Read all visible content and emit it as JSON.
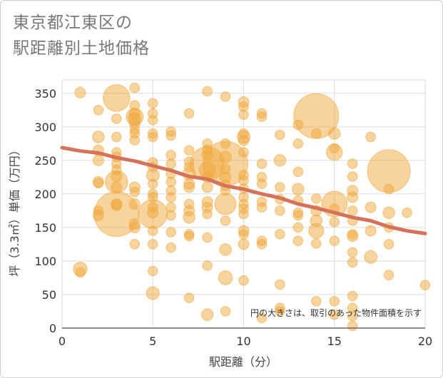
{
  "title_line1": "東京都江東区の",
  "title_line2": "駅距離別土地価格",
  "note": "円の大きさは、取引のあった物件面積を示す",
  "colors": {
    "bubble": "#f0a83c",
    "line": "#d4725a",
    "grid": "#d5dde6",
    "axis": "#666666"
  },
  "chart_data": {
    "type": "scatter",
    "xlabel": "駅距離（分）",
    "ylabel": "坪（3.3㎡）単価（万円）",
    "xlim": [
      0,
      20
    ],
    "ylim": [
      0,
      370
    ],
    "xticks": [
      0,
      5,
      10,
      15,
      20
    ],
    "yticks": [
      0,
      50,
      100,
      150,
      200,
      250,
      300,
      350
    ],
    "grid": true,
    "points": [
      {
        "x": 1,
        "y": 351,
        "s": 1
      },
      {
        "x": 1,
        "y": 88,
        "s": 1.3
      },
      {
        "x": 1,
        "y": 83,
        "s": 0.9
      },
      {
        "x": 2,
        "y": 325,
        "s": 0.9
      },
      {
        "x": 2,
        "y": 285,
        "s": 1.1
      },
      {
        "x": 2,
        "y": 265,
        "s": 1
      },
      {
        "x": 2,
        "y": 250,
        "s": 1
      },
      {
        "x": 2,
        "y": 218,
        "s": 1
      },
      {
        "x": 2,
        "y": 216,
        "s": 0.9
      },
      {
        "x": 2,
        "y": 175,
        "s": 0.9
      },
      {
        "x": 2,
        "y": 168,
        "s": 1
      },
      {
        "x": 3,
        "y": 343,
        "s": 2.5
      },
      {
        "x": 3,
        "y": 312,
        "s": 0.9
      },
      {
        "x": 3,
        "y": 285,
        "s": 0.9
      },
      {
        "x": 3,
        "y": 262,
        "s": 0.9
      },
      {
        "x": 3,
        "y": 255,
        "s": 0.9
      },
      {
        "x": 3,
        "y": 245,
        "s": 0.9
      },
      {
        "x": 3,
        "y": 236,
        "s": 0.9
      },
      {
        "x": 3,
        "y": 226,
        "s": 1
      },
      {
        "x": 3,
        "y": 218,
        "s": 2.1
      },
      {
        "x": 3,
        "y": 210,
        "s": 1
      },
      {
        "x": 3,
        "y": 185,
        "s": 1
      },
      {
        "x": 3,
        "y": 183,
        "s": 1
      },
      {
        "x": 3,
        "y": 170,
        "s": 4.2
      },
      {
        "x": 4,
        "y": 358,
        "s": 0.9
      },
      {
        "x": 4,
        "y": 332,
        "s": 0.9
      },
      {
        "x": 4,
        "y": 320,
        "s": 1
      },
      {
        "x": 4,
        "y": 315,
        "s": 1.6
      },
      {
        "x": 4,
        "y": 312,
        "s": 1.2
      },
      {
        "x": 4,
        "y": 305,
        "s": 1
      },
      {
        "x": 4,
        "y": 296,
        "s": 0.9
      },
      {
        "x": 4,
        "y": 290,
        "s": 0.9
      },
      {
        "x": 4,
        "y": 280,
        "s": 0.9
      },
      {
        "x": 4,
        "y": 210,
        "s": 1
      },
      {
        "x": 4,
        "y": 203,
        "s": 0.9
      },
      {
        "x": 4,
        "y": 185,
        "s": 1
      },
      {
        "x": 4,
        "y": 155,
        "s": 1
      },
      {
        "x": 4,
        "y": 150,
        "s": 1
      },
      {
        "x": 4,
        "y": 125,
        "s": 0.9
      },
      {
        "x": 5,
        "y": 335,
        "s": 0.9
      },
      {
        "x": 5,
        "y": 320,
        "s": 0.9
      },
      {
        "x": 5,
        "y": 310,
        "s": 0.9
      },
      {
        "x": 5,
        "y": 290,
        "s": 0.9
      },
      {
        "x": 5,
        "y": 285,
        "s": 0.9
      },
      {
        "x": 5,
        "y": 247,
        "s": 0.9
      },
      {
        "x": 5,
        "y": 240,
        "s": 0.9
      },
      {
        "x": 5,
        "y": 228,
        "s": 1.2
      },
      {
        "x": 5,
        "y": 215,
        "s": 0.9
      },
      {
        "x": 5,
        "y": 200,
        "s": 0.9
      },
      {
        "x": 5,
        "y": 195,
        "s": 0.9
      },
      {
        "x": 5,
        "y": 180,
        "s": 0.9
      },
      {
        "x": 5,
        "y": 172,
        "s": 1
      },
      {
        "x": 5,
        "y": 170,
        "s": 2.7
      },
      {
        "x": 5,
        "y": 145,
        "s": 0.9
      },
      {
        "x": 5,
        "y": 125,
        "s": 0.9
      },
      {
        "x": 5,
        "y": 85,
        "s": 0.9
      },
      {
        "x": 5,
        "y": 52,
        "s": 1.2
      },
      {
        "x": 6,
        "y": 293,
        "s": 0.9
      },
      {
        "x": 6,
        "y": 287,
        "s": 0.9
      },
      {
        "x": 6,
        "y": 258,
        "s": 0.9
      },
      {
        "x": 6,
        "y": 245,
        "s": 0.9
      },
      {
        "x": 6,
        "y": 230,
        "s": 0.9
      },
      {
        "x": 6,
        "y": 218,
        "s": 0.9
      },
      {
        "x": 6,
        "y": 205,
        "s": 0.9
      },
      {
        "x": 6,
        "y": 195,
        "s": 0.9
      },
      {
        "x": 6,
        "y": 180,
        "s": 0.9
      },
      {
        "x": 6,
        "y": 168,
        "s": 0.9
      },
      {
        "x": 6,
        "y": 143,
        "s": 0.9
      },
      {
        "x": 6,
        "y": 120,
        "s": 0.9
      },
      {
        "x": 7,
        "y": 320,
        "s": 0.9
      },
      {
        "x": 7,
        "y": 265,
        "s": 0.9
      },
      {
        "x": 7,
        "y": 248,
        "s": 0.9
      },
      {
        "x": 7,
        "y": 240,
        "s": 0.9
      },
      {
        "x": 7,
        "y": 230,
        "s": 1.2
      },
      {
        "x": 7,
        "y": 215,
        "s": 1
      },
      {
        "x": 7,
        "y": 210,
        "s": 1
      },
      {
        "x": 7,
        "y": 185,
        "s": 0.9
      },
      {
        "x": 7,
        "y": 175,
        "s": 1
      },
      {
        "x": 7,
        "y": 165,
        "s": 1.1
      },
      {
        "x": 7,
        "y": 140,
        "s": 0.9
      },
      {
        "x": 7,
        "y": 137,
        "s": 0.9
      },
      {
        "x": 7,
        "y": 45,
        "s": 0.9
      },
      {
        "x": 8,
        "y": 353,
        "s": 0.9
      },
      {
        "x": 8,
        "y": 275,
        "s": 0.9
      },
      {
        "x": 8,
        "y": 266,
        "s": 0.9
      },
      {
        "x": 8,
        "y": 258,
        "s": 1
      },
      {
        "x": 8,
        "y": 245,
        "s": 3.2
      },
      {
        "x": 8,
        "y": 236,
        "s": 1.5
      },
      {
        "x": 8,
        "y": 225,
        "s": 1
      },
      {
        "x": 8,
        "y": 210,
        "s": 1
      },
      {
        "x": 8,
        "y": 188,
        "s": 1
      },
      {
        "x": 8,
        "y": 180,
        "s": 1
      },
      {
        "x": 8,
        "y": 170,
        "s": 0.9
      },
      {
        "x": 8,
        "y": 135,
        "s": 0.9
      },
      {
        "x": 8,
        "y": 93,
        "s": 0.9
      },
      {
        "x": 8,
        "y": 20,
        "s": 1.1
      },
      {
        "x": 9,
        "y": 345,
        "s": 0.9
      },
      {
        "x": 9,
        "y": 275,
        "s": 0.9
      },
      {
        "x": 9,
        "y": 255,
        "s": 1.1
      },
      {
        "x": 9,
        "y": 245,
        "s": 4.2
      },
      {
        "x": 9,
        "y": 237,
        "s": 0.9
      },
      {
        "x": 9,
        "y": 225,
        "s": 1
      },
      {
        "x": 9,
        "y": 213,
        "s": 1
      },
      {
        "x": 9,
        "y": 205,
        "s": 0.9
      },
      {
        "x": 9,
        "y": 185,
        "s": 2
      },
      {
        "x": 9,
        "y": 160,
        "s": 0.9
      },
      {
        "x": 9,
        "y": 117,
        "s": 1.1
      },
      {
        "x": 9,
        "y": 75,
        "s": 1.3
      },
      {
        "x": 9,
        "y": 25,
        "s": 0.9
      },
      {
        "x": 10,
        "y": 337,
        "s": 1
      },
      {
        "x": 10,
        "y": 330,
        "s": 0.9
      },
      {
        "x": 10,
        "y": 318,
        "s": 0.9
      },
      {
        "x": 10,
        "y": 290,
        "s": 0.9
      },
      {
        "x": 10,
        "y": 285,
        "s": 1.2
      },
      {
        "x": 10,
        "y": 280,
        "s": 1
      },
      {
        "x": 10,
        "y": 262,
        "s": 0.9
      },
      {
        "x": 10,
        "y": 228,
        "s": 0.9
      },
      {
        "x": 10,
        "y": 220,
        "s": 0.9
      },
      {
        "x": 10,
        "y": 208,
        "s": 0.9
      },
      {
        "x": 10,
        "y": 195,
        "s": 0.9
      },
      {
        "x": 10,
        "y": 185,
        "s": 0.9
      },
      {
        "x": 10,
        "y": 178,
        "s": 0.9
      },
      {
        "x": 10,
        "y": 170,
        "s": 0.9
      },
      {
        "x": 10,
        "y": 145,
        "s": 1
      },
      {
        "x": 10,
        "y": 140,
        "s": 0.9
      },
      {
        "x": 10,
        "y": 125,
        "s": 1
      },
      {
        "x": 10,
        "y": 71,
        "s": 0.9
      },
      {
        "x": 11,
        "y": 320,
        "s": 0.9
      },
      {
        "x": 11,
        "y": 315,
        "s": 0.9
      },
      {
        "x": 11,
        "y": 245,
        "s": 0.9
      },
      {
        "x": 11,
        "y": 225,
        "s": 0.9
      },
      {
        "x": 11,
        "y": 215,
        "s": 0.9
      },
      {
        "x": 11,
        "y": 188,
        "s": 0.9
      },
      {
        "x": 11,
        "y": 180,
        "s": 0.9
      },
      {
        "x": 11,
        "y": 130,
        "s": 0.9
      },
      {
        "x": 11,
        "y": 125,
        "s": 0.9
      },
      {
        "x": 11,
        "y": 15,
        "s": 0.9
      },
      {
        "x": 12,
        "y": 288,
        "s": 0.9
      },
      {
        "x": 12,
        "y": 250,
        "s": 1.1
      },
      {
        "x": 12,
        "y": 210,
        "s": 0.9
      },
      {
        "x": 12,
        "y": 192,
        "s": 0.9
      },
      {
        "x": 12,
        "y": 175,
        "s": 0.9
      },
      {
        "x": 12,
        "y": 140,
        "s": 0.9
      },
      {
        "x": 12,
        "y": 65,
        "s": 0.9
      },
      {
        "x": 12,
        "y": 30,
        "s": 0.9
      },
      {
        "x": 12,
        "y": 25,
        "s": 0.9
      },
      {
        "x": 13,
        "y": 303,
        "s": 0.9
      },
      {
        "x": 13,
        "y": 275,
        "s": 0.9
      },
      {
        "x": 13,
        "y": 233,
        "s": 0.9
      },
      {
        "x": 13,
        "y": 207,
        "s": 1.1
      },
      {
        "x": 13,
        "y": 190,
        "s": 0.9
      },
      {
        "x": 13,
        "y": 172,
        "s": 0.9
      },
      {
        "x": 13,
        "y": 168,
        "s": 0.9
      },
      {
        "x": 13,
        "y": 150,
        "s": 0.9
      },
      {
        "x": 13,
        "y": 130,
        "s": 0.9
      },
      {
        "x": 14,
        "y": 316,
        "s": 4.2
      },
      {
        "x": 14,
        "y": 290,
        "s": 0.9
      },
      {
        "x": 14,
        "y": 193,
        "s": 0.9
      },
      {
        "x": 14,
        "y": 175,
        "s": 1
      },
      {
        "x": 14,
        "y": 160,
        "s": 1.1
      },
      {
        "x": 14,
        "y": 145,
        "s": 1.4
      },
      {
        "x": 14,
        "y": 126,
        "s": 0.9
      },
      {
        "x": 14,
        "y": 40,
        "s": 0.9
      },
      {
        "x": 15,
        "y": 290,
        "s": 1.1
      },
      {
        "x": 15,
        "y": 268,
        "s": 0.9
      },
      {
        "x": 15,
        "y": 262,
        "s": 1.5
      },
      {
        "x": 15,
        "y": 185,
        "s": 2.4
      },
      {
        "x": 15,
        "y": 178,
        "s": 0.9
      },
      {
        "x": 15,
        "y": 158,
        "s": 0.9
      },
      {
        "x": 15,
        "y": 130,
        "s": 0.9
      },
      {
        "x": 15,
        "y": 40,
        "s": 0.9
      },
      {
        "x": 15,
        "y": 20,
        "s": 0.9
      },
      {
        "x": 16,
        "y": 245,
        "s": 0.9
      },
      {
        "x": 16,
        "y": 226,
        "s": 0.9
      },
      {
        "x": 16,
        "y": 205,
        "s": 1
      },
      {
        "x": 16,
        "y": 195,
        "s": 1
      },
      {
        "x": 16,
        "y": 175,
        "s": 0.9
      },
      {
        "x": 16,
        "y": 160,
        "s": 0.9
      },
      {
        "x": 16,
        "y": 140,
        "s": 0.9
      },
      {
        "x": 16,
        "y": 137,
        "s": 1
      },
      {
        "x": 16,
        "y": 113,
        "s": 0.9
      },
      {
        "x": 16,
        "y": 98,
        "s": 0.9
      },
      {
        "x": 16,
        "y": 48,
        "s": 0.9
      },
      {
        "x": 16,
        "y": 30,
        "s": 0.9
      },
      {
        "x": 16,
        "y": 18,
        "s": 0.9
      },
      {
        "x": 16,
        "y": 3,
        "s": 0.9
      },
      {
        "x": 17,
        "y": 285,
        "s": 0.9
      },
      {
        "x": 17,
        "y": 180,
        "s": 1
      },
      {
        "x": 17,
        "y": 145,
        "s": 1
      },
      {
        "x": 17,
        "y": 106,
        "s": 1.2
      },
      {
        "x": 18,
        "y": 234,
        "s": 4
      },
      {
        "x": 18,
        "y": 207,
        "s": 0.9
      },
      {
        "x": 18,
        "y": 172,
        "s": 1.1
      },
      {
        "x": 18,
        "y": 150,
        "s": 0.9
      },
      {
        "x": 18,
        "y": 125,
        "s": 0.9
      },
      {
        "x": 18,
        "y": 79,
        "s": 0.9
      },
      {
        "x": 19,
        "y": 172,
        "s": 0.9
      },
      {
        "x": 20,
        "y": 64,
        "s": 0.9
      }
    ],
    "trend": [
      {
        "x": 0,
        "y": 269
      },
      {
        "x": 1,
        "y": 264
      },
      {
        "x": 2,
        "y": 261
      },
      {
        "x": 3,
        "y": 254
      },
      {
        "x": 4,
        "y": 249
      },
      {
        "x": 5,
        "y": 242
      },
      {
        "x": 6,
        "y": 235
      },
      {
        "x": 7,
        "y": 226
      },
      {
        "x": 8,
        "y": 222
      },
      {
        "x": 9,
        "y": 212
      },
      {
        "x": 10,
        "y": 207
      },
      {
        "x": 11,
        "y": 200
      },
      {
        "x": 12,
        "y": 194
      },
      {
        "x": 13,
        "y": 185
      },
      {
        "x": 14,
        "y": 179
      },
      {
        "x": 15,
        "y": 172
      },
      {
        "x": 16,
        "y": 165
      },
      {
        "x": 17,
        "y": 160
      },
      {
        "x": 18,
        "y": 151
      },
      {
        "x": 19,
        "y": 145
      },
      {
        "x": 20,
        "y": 141
      }
    ]
  }
}
